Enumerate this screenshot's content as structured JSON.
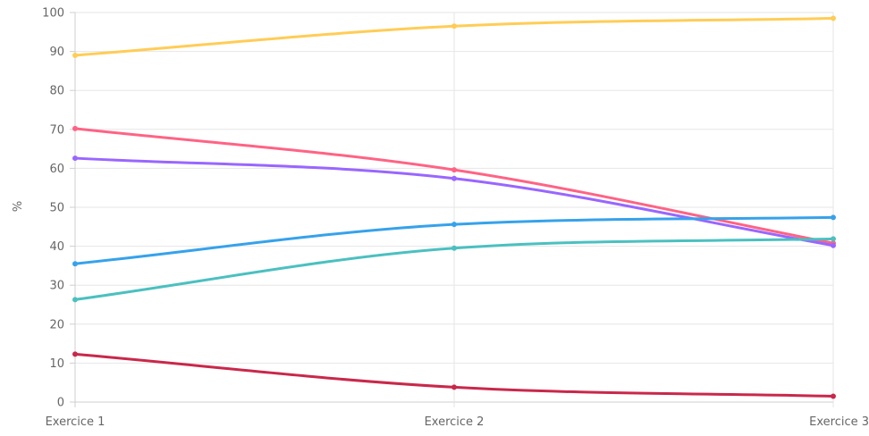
{
  "chart_data": {
    "type": "line",
    "title": "",
    "xlabel": "",
    "ylabel": "%",
    "categories": [
      "Exercice 1",
      "Exercice 2",
      "Exercice 3"
    ],
    "ylim": [
      0,
      100
    ],
    "yticks": [
      0,
      10,
      20,
      30,
      40,
      50,
      60,
      70,
      80,
      90,
      100
    ],
    "grid": true,
    "legend": "none",
    "series": [
      {
        "color": "#ffcd56",
        "values": [
          89,
          96.5,
          98.5
        ]
      },
      {
        "color": "#ff6384",
        "values": [
          70.2,
          59.6,
          40.8
        ]
      },
      {
        "color": "#9966ff",
        "values": [
          62.6,
          57.4,
          40.2
        ]
      },
      {
        "color": "#36a2eb",
        "values": [
          35.5,
          45.6,
          47.4
        ]
      },
      {
        "color": "#4bc0c0",
        "values": [
          26.3,
          39.5,
          41.9
        ]
      },
      {
        "color": "#c9284a",
        "values": [
          12.3,
          3.8,
          1.5
        ]
      }
    ]
  }
}
